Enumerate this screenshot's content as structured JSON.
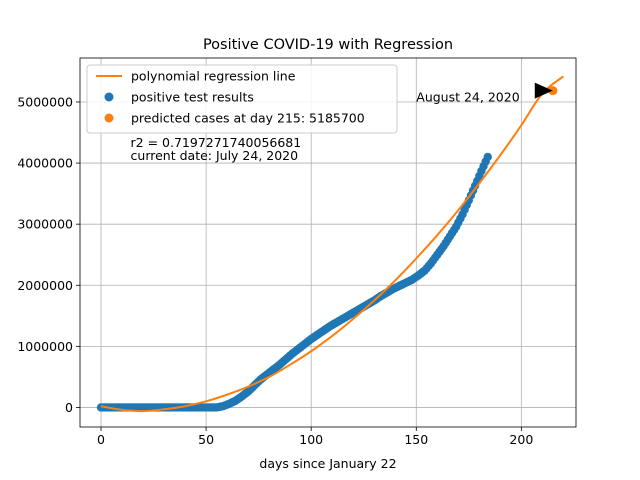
{
  "chart_data": {
    "type": "scatter",
    "title": "Positive COVID-19 with Regression",
    "xlabel": "days since January 22",
    "ylabel": "",
    "xlim": [
      -10,
      226
    ],
    "ylim": [
      -320000,
      5720000
    ],
    "xticks": [
      0,
      50,
      100,
      150,
      200
    ],
    "yticks": [
      0,
      1000000,
      2000000,
      3000000,
      4000000,
      5000000
    ],
    "grid": true,
    "legend_position": "top-left",
    "series": [
      {
        "name": "polynomial regression line",
        "kind": "line",
        "color": "#ff7f0e",
        "x": [
          0,
          10,
          20,
          30,
          40,
          50,
          60,
          70,
          80,
          90,
          100,
          110,
          120,
          130,
          140,
          150,
          160,
          170,
          180,
          190,
          200,
          210,
          220
        ],
        "y": [
          20000,
          -40000,
          -60000,
          -30000,
          20000,
          100000,
          210000,
          340000,
          500000,
          700000,
          920000,
          1170000,
          1450000,
          1750000,
          2080000,
          2440000,
          2820000,
          3230000,
          3670000,
          4130000,
          4620000,
          5140000,
          5420000
        ]
      },
      {
        "name": "positive test results",
        "kind": "scatter",
        "color": "#1f77b4",
        "x": [
          0,
          5,
          10,
          15,
          20,
          25,
          30,
          35,
          40,
          45,
          50,
          55,
          58,
          61,
          64,
          67,
          70,
          73,
          76,
          79,
          82,
          85,
          88,
          91,
          94,
          97,
          100,
          103,
          106,
          109,
          112,
          115,
          118,
          121,
          124,
          127,
          130,
          133,
          136,
          139,
          142,
          145,
          148,
          151,
          154,
          157,
          160,
          163,
          166,
          169,
          172,
          175,
          178,
          181,
          184
        ],
        "y": [
          0,
          0,
          0,
          0,
          0,
          0,
          0,
          0,
          0,
          0,
          0,
          0,
          20000,
          60000,
          110000,
          180000,
          260000,
          360000,
          460000,
          540000,
          620000,
          700000,
          790000,
          880000,
          960000,
          1040000,
          1120000,
          1190000,
          1260000,
          1330000,
          1390000,
          1450000,
          1510000,
          1570000,
          1630000,
          1690000,
          1750000,
          1820000,
          1880000,
          1940000,
          1990000,
          2040000,
          2090000,
          2160000,
          2240000,
          2360000,
          2500000,
          2640000,
          2800000,
          2960000,
          3160000,
          3390000,
          3630000,
          3870000,
          4100000
        ]
      },
      {
        "name": "predicted cases at day 215: 5185700",
        "kind": "point",
        "color": "#ff7f0e",
        "x": [
          215
        ],
        "y": [
          5185700
        ]
      }
    ],
    "annotations": [
      {
        "text": "August 24, 2020",
        "x": 150,
        "y": 5090000,
        "arrow_to_x": 214,
        "arrow_to_y": 5185700
      },
      {
        "text": "r2 = 0.7197271740056681",
        "x": 15,
        "y": 4345000
      },
      {
        "text": "current date: July 24, 2020",
        "x": 15,
        "y": 4130000
      }
    ]
  }
}
